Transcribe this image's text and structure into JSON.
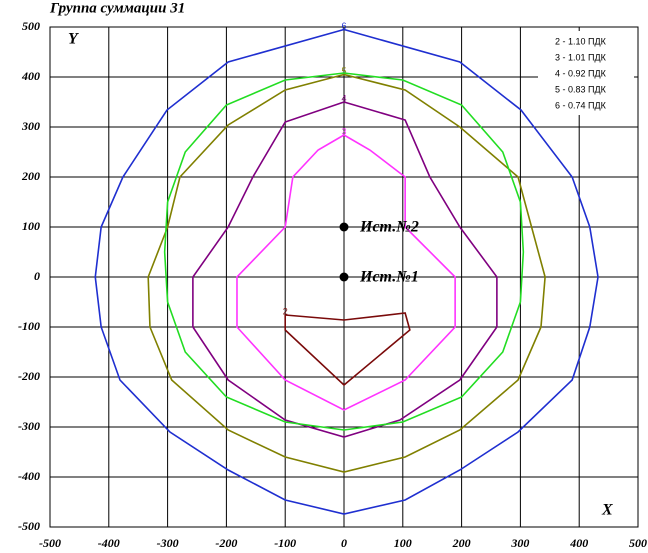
{
  "chart_data": {
    "type": "line",
    "title": "Группа суммации 31",
    "x_label": "X",
    "y_label": "Y",
    "xlim": [
      -500,
      500
    ],
    "ylim": [
      -500,
      500
    ],
    "xticks": [
      -500,
      -400,
      -300,
      -200,
      -100,
      0,
      100,
      200,
      300,
      400,
      500
    ],
    "yticks": [
      -500,
      -400,
      -300,
      -200,
      -100,
      0,
      100,
      200,
      300,
      400,
      500
    ],
    "grid": true,
    "legend": "top-right",
    "series": [
      {
        "name": "2 - 1.10 ПДК",
        "label": "2",
        "color": "#7a0a0a",
        "x": [
          -100,
          0,
          104,
          112,
          0,
          -100,
          -100
        ],
        "values": [
          -76,
          -86,
          -72,
          -106,
          -216,
          -106,
          -76
        ]
      },
      {
        "name": "3 - 1.01 ПДК",
        "label": "3",
        "color": "#ff33ff",
        "x": [
          0,
          44,
          104,
          104,
          189,
          189,
          104,
          0,
          -100,
          -182,
          -182,
          -100,
          -87,
          -44,
          0
        ],
        "values": [
          284,
          254,
          200,
          100,
          0,
          -100,
          -206,
          -266,
          -206,
          -100,
          0,
          100,
          200,
          254,
          284
        ]
      },
      {
        "name": "4 - 0.92 ПДК",
        "label": "4",
        "color": "#800080",
        "x": [
          0,
          104,
          146,
          197,
          260,
          260,
          197,
          95,
          0,
          -100,
          -197,
          -257,
          -257,
          -197,
          -155,
          -100,
          0
        ],
        "values": [
          350,
          314,
          200,
          100,
          0,
          -100,
          -206,
          -286,
          -320,
          -286,
          -206,
          -100,
          0,
          100,
          200,
          310,
          350
        ]
      },
      {
        "name": "5 - 0.83 ПДК",
        "label": "5",
        "color": "#808000",
        "x": [
          0,
          104,
          197,
          296,
          342,
          335,
          296,
          197,
          104,
          0,
          -100,
          -197,
          -293,
          -330,
          -333,
          -300,
          -279,
          -197,
          -100,
          0
        ],
        "values": [
          405,
          374,
          300,
          200,
          0,
          -100,
          -206,
          -306,
          -360,
          -390,
          -360,
          -306,
          -206,
          -100,
          0,
          100,
          200,
          304,
          374,
          405
        ]
      },
      {
        "name": "6 - 0.74 ПДК",
        "label": "6",
        "color": "#1f2fd0",
        "x": [
          0,
          197,
          301,
          388,
          418,
          432,
          418,
          388,
          296,
          197,
          104,
          0,
          -100,
          -197,
          -296,
          -381,
          -413,
          -423,
          -413,
          -376,
          -301,
          -197,
          0
        ],
        "values": [
          495,
          430,
          334,
          200,
          100,
          0,
          -100,
          -206,
          -310,
          -386,
          -446,
          -474,
          -446,
          -386,
          -310,
          -206,
          -100,
          0,
          100,
          200,
          334,
          430,
          495
        ]
      },
      {
        "color": "#22dd22",
        "x": [
          0,
          100,
          200,
          270,
          300,
          305,
          300,
          270,
          200,
          100,
          0,
          -100,
          -200,
          -270,
          -300,
          -305,
          -300,
          -270,
          -200,
          -100,
          0
        ],
        "values": [
          408,
          394,
          344,
          250,
          150,
          50,
          -50,
          -150,
          -240,
          -290,
          -306,
          -290,
          -240,
          -150,
          -50,
          50,
          150,
          250,
          344,
          394,
          408
        ]
      }
    ],
    "sources": [
      {
        "label": "Ист.№2",
        "x": 0,
        "y": 100
      },
      {
        "label": "Ист.№1",
        "x": 0,
        "y": 0
      }
    ]
  }
}
